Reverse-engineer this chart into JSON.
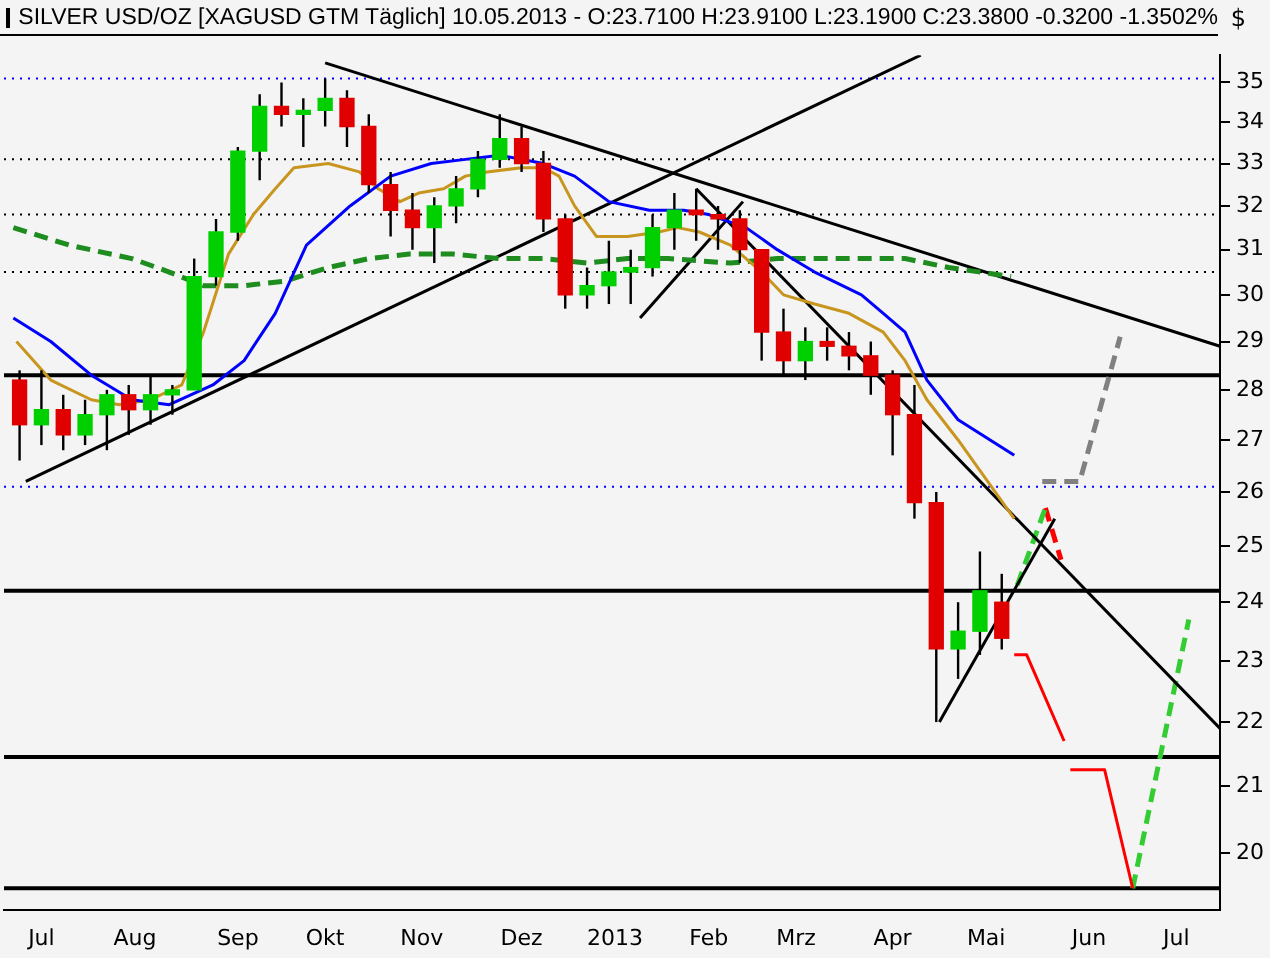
{
  "chart_data": {
    "type": "candlestick",
    "title": "SILVER USD/OZ [XAGUSD GTM  Täglich] 10.05.2013 - O:23.7100 H:23.9100 L:23.1900 C:23.3800 -0.3200 -1.3502%",
    "ylabel": "$",
    "x": [
      "2012-06-25",
      "2012-07-02",
      "2012-07-09",
      "2012-07-16",
      "2012-07-23",
      "2012-07-30",
      "2012-08-06",
      "2012-08-13",
      "2012-08-20",
      "2012-08-27",
      "2012-09-03",
      "2012-09-10",
      "2012-09-17",
      "2012-09-24",
      "2012-10-01",
      "2012-10-08",
      "2012-10-15",
      "2012-10-22",
      "2012-10-29",
      "2012-11-05",
      "2012-11-12",
      "2012-11-19",
      "2012-11-26",
      "2012-12-03",
      "2012-12-10",
      "2012-12-17",
      "2012-12-24",
      "2012-12-31",
      "2013-01-07",
      "2013-01-14",
      "2013-01-21",
      "2013-01-28",
      "2013-02-04",
      "2013-02-11",
      "2013-02-18",
      "2013-02-25",
      "2013-03-04",
      "2013-03-11",
      "2013-03-18",
      "2013-03-25",
      "2013-04-01",
      "2013-04-08",
      "2013-04-15",
      "2013-04-22",
      "2013-04-29",
      "2013-05-06"
    ],
    "ohlc": [
      [
        28.2,
        28.4,
        26.6,
        27.3
      ],
      [
        27.3,
        28.4,
        26.9,
        27.6
      ],
      [
        27.6,
        27.9,
        26.8,
        27.1
      ],
      [
        27.1,
        27.8,
        26.9,
        27.5
      ],
      [
        27.5,
        28.0,
        26.8,
        27.9
      ],
      [
        27.9,
        28.1,
        27.1,
        27.6
      ],
      [
        27.6,
        28.3,
        27.3,
        27.9
      ],
      [
        27.9,
        28.1,
        27.5,
        28.0
      ],
      [
        28.0,
        30.8,
        28.0,
        30.4
      ],
      [
        30.4,
        31.7,
        30.2,
        31.4
      ],
      [
        31.4,
        33.4,
        31.2,
        33.3
      ],
      [
        33.3,
        34.7,
        32.6,
        34.4
      ],
      [
        34.4,
        35.0,
        33.9,
        34.2
      ],
      [
        34.2,
        34.6,
        33.4,
        34.3
      ],
      [
        34.3,
        35.1,
        33.9,
        34.6
      ],
      [
        34.6,
        34.8,
        33.4,
        33.9
      ],
      [
        33.9,
        34.2,
        32.3,
        32.5
      ],
      [
        32.5,
        32.8,
        31.3,
        31.9
      ],
      [
        31.9,
        32.3,
        31.0,
        31.5
      ],
      [
        31.5,
        32.2,
        30.7,
        32.0
      ],
      [
        32.0,
        32.7,
        31.6,
        32.4
      ],
      [
        32.4,
        33.3,
        32.2,
        33.1
      ],
      [
        33.1,
        34.2,
        32.9,
        33.6
      ],
      [
        33.6,
        33.9,
        32.8,
        33.0
      ],
      [
        33.0,
        33.3,
        31.4,
        31.7
      ],
      [
        31.7,
        31.8,
        29.7,
        30.0
      ],
      [
        30.0,
        30.6,
        29.7,
        30.2
      ],
      [
        30.2,
        31.2,
        29.8,
        30.5
      ],
      [
        30.5,
        31.0,
        29.8,
        30.6
      ],
      [
        30.6,
        31.8,
        30.4,
        31.5
      ],
      [
        31.5,
        32.3,
        31.0,
        31.9
      ],
      [
        31.9,
        32.4,
        31.2,
        31.8
      ],
      [
        31.8,
        32.0,
        31.0,
        31.7
      ],
      [
        31.7,
        31.9,
        30.7,
        31.0
      ],
      [
        31.0,
        31.0,
        28.6,
        29.2
      ],
      [
        29.2,
        29.7,
        28.3,
        28.6
      ],
      [
        28.6,
        29.3,
        28.2,
        29.0
      ],
      [
        29.0,
        29.3,
        28.6,
        28.9
      ],
      [
        28.9,
        29.2,
        28.4,
        28.7
      ],
      [
        28.7,
        29.0,
        27.9,
        28.3
      ],
      [
        28.3,
        28.4,
        26.7,
        27.5
      ],
      [
        27.5,
        28.1,
        25.5,
        25.8
      ],
      [
        25.8,
        26.0,
        22.0,
        23.2
      ],
      [
        23.2,
        24.0,
        22.7,
        23.5
      ],
      [
        23.5,
        24.9,
        23.1,
        24.2
      ],
      [
        24.0,
        24.5,
        23.19,
        23.38
      ]
    ],
    "series": [
      {
        "type": "line",
        "color": "#0000ff",
        "line_style": "solid",
        "x": [
          "2012-06-23",
          "2012-07-05",
          "2012-07-18",
          "2012-07-31",
          "2012-08-12",
          "2012-08-26",
          "2012-09-05",
          "2012-09-15",
          "2012-09-25",
          "2012-10-09",
          "2012-10-22",
          "2012-11-04",
          "2012-11-15",
          "2012-11-26",
          "2012-12-10",
          "2012-12-20",
          "2012-12-31",
          "2013-01-13",
          "2013-01-24",
          "2013-02-01",
          "2013-02-13",
          "2013-02-23",
          "2013-03-07",
          "2013-03-22",
          "2013-03-29",
          "2013-04-05",
          "2013-04-12",
          "2013-04-22",
          "2013-05-10"
        ],
        "values": [
          29.5,
          29.0,
          28.3,
          27.8,
          27.7,
          28.1,
          28.6,
          29.6,
          31.1,
          32.0,
          32.7,
          33.0,
          33.1,
          33.2,
          33.0,
          32.7,
          32.1,
          31.9,
          31.9,
          31.8,
          31.5,
          31.0,
          30.5,
          30.0,
          29.6,
          29.2,
          28.2,
          27.4,
          26.7
        ]
      },
      {
        "type": "line",
        "color": "#c8961e",
        "line_style": "solid",
        "x": [
          "2012-06-24",
          "2012-07-05",
          "2012-07-18",
          "2012-07-27",
          "2012-08-06",
          "2012-08-16",
          "2012-08-23",
          "2012-08-31",
          "2012-09-08",
          "2012-09-15",
          "2012-09-21",
          "2012-10-02",
          "2012-10-12",
          "2012-10-18",
          "2012-10-25",
          "2012-10-31",
          "2012-11-08",
          "2012-11-15",
          "2012-11-22",
          "2012-12-03",
          "2012-12-10",
          "2012-12-15",
          "2012-12-20",
          "2012-12-27",
          "2013-01-06",
          "2013-01-16",
          "2013-01-22",
          "2013-01-29",
          "2013-02-08",
          "2013-02-18",
          "2013-02-25",
          "2013-03-07",
          "2013-03-18",
          "2013-03-29",
          "2013-04-05",
          "2013-04-12",
          "2013-04-22",
          "2013-05-10"
        ],
        "values": [
          29.0,
          28.2,
          27.8,
          27.7,
          27.8,
          28.1,
          29.2,
          30.9,
          31.8,
          32.4,
          32.9,
          33.0,
          32.8,
          32.4,
          32.1,
          32.3,
          32.4,
          32.7,
          32.8,
          32.9,
          32.9,
          32.7,
          32.0,
          31.3,
          31.3,
          31.4,
          31.5,
          31.4,
          31.1,
          30.5,
          30.0,
          29.8,
          29.6,
          29.2,
          28.6,
          27.8,
          27.0,
          25.5
        ]
      },
      {
        "type": "line",
        "color": "#1e8c1e",
        "line_style": "dashed",
        "x": [
          "2012-06-23",
          "2012-07-11",
          "2012-07-31",
          "2012-08-12",
          "2012-08-23",
          "2012-09-05",
          "2012-09-18",
          "2012-10-02",
          "2012-10-15",
          "2012-10-28",
          "2012-11-11",
          "2012-11-26",
          "2012-12-10",
          "2012-12-24",
          "2013-01-06",
          "2013-01-19",
          "2013-02-08",
          "2013-02-23",
          "2013-03-07",
          "2013-03-22",
          "2013-04-05",
          "2013-04-19",
          "2013-05-09"
        ],
        "values": [
          31.5,
          31.1,
          30.8,
          30.5,
          30.2,
          30.2,
          30.3,
          30.6,
          30.8,
          30.9,
          30.9,
          30.8,
          30.8,
          30.7,
          30.8,
          30.8,
          30.7,
          30.8,
          30.8,
          30.8,
          30.8,
          30.6,
          30.4
        ]
      },
      {
        "type": "line",
        "color": "#000000",
        "line_style": "solid",
        "x": [
          "2012-06-27",
          "2013-04-10"
        ],
        "values": [
          26.2,
          35.7
        ]
      },
      {
        "type": "line",
        "color": "#000000",
        "line_style": "solid",
        "x": [
          "2012-10-01",
          "2013-07-15"
        ],
        "values": [
          35.5,
          28.9
        ]
      },
      {
        "type": "line",
        "color": "#000000",
        "line_style": "solid",
        "x": [
          "2013-01-28",
          "2013-07-15"
        ],
        "values": [
          32.4,
          21.9
        ]
      },
      {
        "type": "line",
        "color": "#000000",
        "line_style": "solid",
        "x": [
          "2013-04-16",
          "2013-05-23"
        ],
        "values": [
          22.0,
          25.5
        ]
      },
      {
        "type": "line",
        "color": "#000000",
        "line_style": "solid",
        "x": [
          "2013-01-10",
          "2013-02-12"
        ],
        "values": [
          29.5,
          32.1
        ]
      },
      {
        "type": "line",
        "color": "#33cc33",
        "line_style": "dashed",
        "x": [
          "2013-05-11",
          "2013-05-20"
        ],
        "values": [
          24.3,
          25.7
        ]
      },
      {
        "type": "line",
        "color": "#ff0000",
        "line_style": "dashed",
        "x": [
          "2013-05-20",
          "2013-05-25"
        ],
        "values": [
          25.7,
          24.75
        ]
      },
      {
        "type": "line",
        "color": "#808080",
        "line_style": "dashed",
        "x": [
          "2013-05-19",
          "2013-05-31",
          "2013-06-13"
        ],
        "values": [
          26.2,
          26.2,
          29.1
        ]
      },
      {
        "type": "line",
        "color": "#ff0000",
        "line_style": "solid",
        "x": [
          "2013-05-10",
          "2013-05-14",
          "2013-05-26"
        ],
        "values": [
          23.1,
          23.1,
          21.7
        ]
      },
      {
        "type": "line",
        "color": "#ff0000",
        "line_style": "solid",
        "x": [
          "2013-05-28",
          "2013-06-08",
          "2013-06-17"
        ],
        "values": [
          21.25,
          21.25,
          19.5
        ]
      },
      {
        "type": "line",
        "color": "#33cc33",
        "line_style": "dashed",
        "x": [
          "2013-06-17",
          "2013-07-05"
        ],
        "values": [
          19.5,
          23.7
        ]
      }
    ],
    "ref_lines": [
      {
        "axis": "y",
        "value": 35.1,
        "color": "#0000ff",
        "line_style": "dotted"
      },
      {
        "axis": "y",
        "value": 33.1,
        "color": "#000000",
        "line_style": "dotted"
      },
      {
        "axis": "y",
        "value": 31.8,
        "color": "#000000",
        "line_style": "dotted"
      },
      {
        "axis": "y",
        "value": 30.5,
        "color": "#000000",
        "line_style": "dotted"
      },
      {
        "axis": "y",
        "value": 28.3,
        "color": "#000000",
        "line_style": "solid"
      },
      {
        "axis": "y",
        "value": 26.1,
        "color": "#0000ff",
        "line_style": "dotted"
      },
      {
        "axis": "y",
        "value": 24.2,
        "color": "#000000",
        "line_style": "solid"
      },
      {
        "axis": "y",
        "value": 21.45,
        "color": "#000000",
        "line_style": "solid"
      },
      {
        "axis": "y",
        "value": 19.5,
        "color": "#000000",
        "line_style": "solid"
      }
    ],
    "xlim": [
      "2012-06-20",
      "2013-07-15"
    ],
    "xticks": [
      {
        "value": "2012-07-02",
        "label": "Jul"
      },
      {
        "value": "2012-08-01",
        "label": "Aug"
      },
      {
        "value": "2012-09-03",
        "label": "Sep"
      },
      {
        "value": "2012-10-01",
        "label": "Okt"
      },
      {
        "value": "2012-11-01",
        "label": "Nov"
      },
      {
        "value": "2012-12-03",
        "label": "Dez"
      },
      {
        "value": "2013-01-02",
        "label": "2013"
      },
      {
        "value": "2013-02-01",
        "label": "Feb"
      },
      {
        "value": "2013-03-01",
        "label": "Mrz"
      },
      {
        "value": "2013-04-01",
        "label": "Apr"
      },
      {
        "value": "2013-05-01",
        "label": "Mai"
      },
      {
        "value": "2013-06-03",
        "label": "Jun"
      },
      {
        "value": "2013-07-01",
        "label": "Jul"
      }
    ],
    "ylim": [
      19.2,
      35.7
    ],
    "yticks": [
      20,
      21,
      22,
      23,
      24,
      25,
      26,
      27,
      28,
      29,
      30,
      31,
      32,
      33,
      34,
      35
    ],
    "log": true,
    "marker": "none"
  }
}
